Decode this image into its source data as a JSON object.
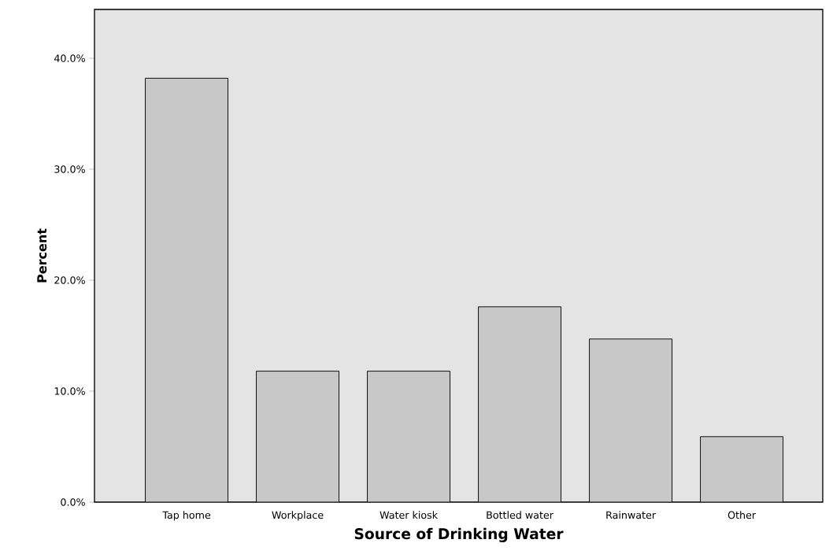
{
  "chart_data": {
    "type": "bar",
    "xlabel": "Source of Drinking Water",
    "ylabel": "Percent",
    "categories": [
      "Tap home",
      "Workplace",
      "Water kiosk",
      "Bottled water",
      "Rainwater",
      "Other"
    ],
    "values": [
      38.2,
      11.8,
      11.8,
      17.6,
      14.7,
      5.9
    ],
    "color": "#c8c8c8",
    "ylim": [
      0,
      44.4
    ],
    "yticks": [
      {
        "value": 0,
        "label": "0.0%"
      },
      {
        "value": 10,
        "label": "10.0%"
      },
      {
        "value": 20,
        "label": "20.0%"
      },
      {
        "value": 30,
        "label": "30.0%"
      },
      {
        "value": 40,
        "label": "40.0%"
      }
    ]
  }
}
